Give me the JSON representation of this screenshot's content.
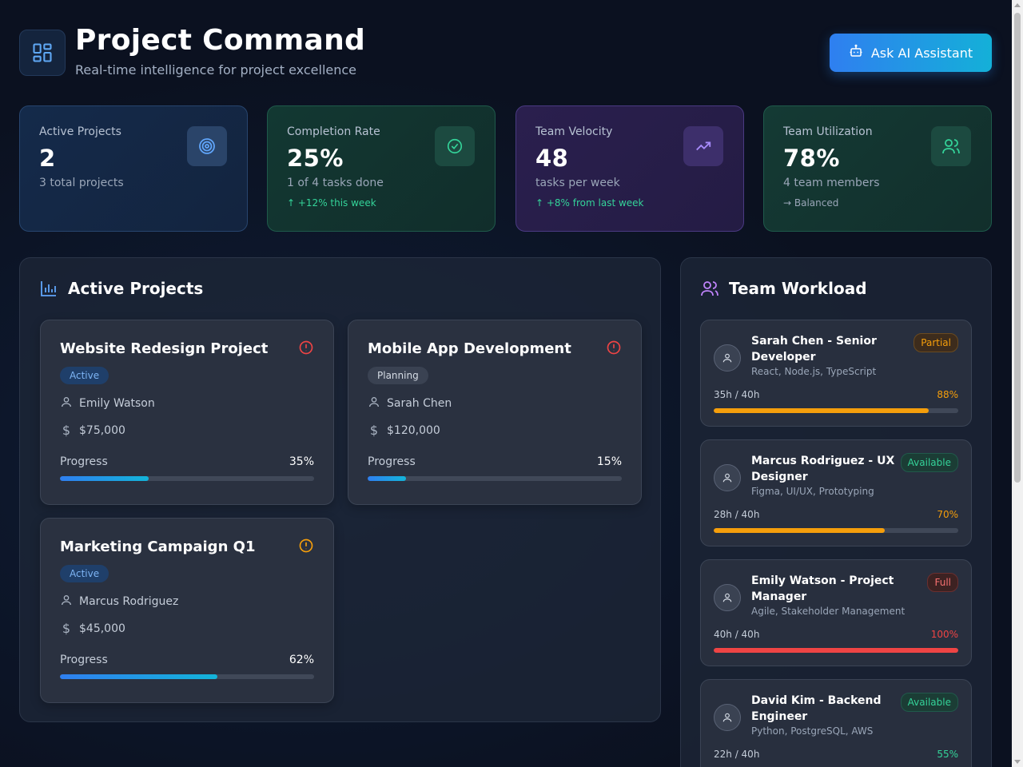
{
  "header": {
    "title": "Project Command",
    "subtitle": "Real-time intelligence for project excellence",
    "ai_button_label": "Ask AI Assistant"
  },
  "stats": [
    {
      "label": "Active Projects",
      "value": "2",
      "sub": "3 total projects",
      "trend": "",
      "icon": "target-icon",
      "color": "#60a5fa"
    },
    {
      "label": "Completion Rate",
      "value": "25%",
      "sub": "1 of 4 tasks done",
      "trend": "↑ +12% this week",
      "icon": "check-circle-icon",
      "color": "#34d399"
    },
    {
      "label": "Team Velocity",
      "value": "48",
      "sub": "tasks per week",
      "trend": "↑ +8% from last week",
      "icon": "trending-up-icon",
      "color": "#a78bfa"
    },
    {
      "label": "Team Utilization",
      "value": "78%",
      "sub": "4 team members",
      "trend": "→ Balanced",
      "icon": "users-icon",
      "color": "#34d399"
    }
  ],
  "projects_panel": {
    "title": "Active Projects",
    "progress_label": "Progress",
    "projects": [
      {
        "name": "Website Redesign Project",
        "status": "Active",
        "owner": "Emily Watson",
        "budget": "$75,000",
        "progress": 35,
        "progress_text": "35%",
        "alert_color": "#ef4444"
      },
      {
        "name": "Mobile App Development",
        "status": "Planning",
        "owner": "Sarah Chen",
        "budget": "$120,000",
        "progress": 15,
        "progress_text": "15%",
        "alert_color": "#ef4444"
      },
      {
        "name": "Marketing Campaign Q1",
        "status": "Active",
        "owner": "Marcus Rodriguez",
        "budget": "$45,000",
        "progress": 62,
        "progress_text": "62%",
        "alert_color": "#f59e0b"
      }
    ]
  },
  "workload_panel": {
    "title": "Team Workload",
    "members": [
      {
        "name": "Sarah Chen - Senior Developer",
        "skills": "React, Node.js, TypeScript",
        "status": "Partial",
        "hours": "35h / 40h",
        "percent": 88,
        "percent_text": "88%",
        "color": "#f59e0b"
      },
      {
        "name": "Marcus Rodriguez - UX Designer",
        "skills": "Figma, UI/UX, Prototyping",
        "status": "Available",
        "hours": "28h / 40h",
        "percent": 70,
        "percent_text": "70%",
        "color": "#f59e0b"
      },
      {
        "name": "Emily Watson - Project Manager",
        "skills": "Agile, Stakeholder Management",
        "status": "Full",
        "hours": "40h / 40h",
        "percent": 100,
        "percent_text": "100%",
        "color": "#ef4444"
      },
      {
        "name": "David Kim - Backend Engineer",
        "skills": "Python, PostgreSQL, AWS",
        "status": "Available",
        "hours": "22h / 40h",
        "percent": 55,
        "percent_text": "55%",
        "color": "#34d399"
      }
    ]
  }
}
